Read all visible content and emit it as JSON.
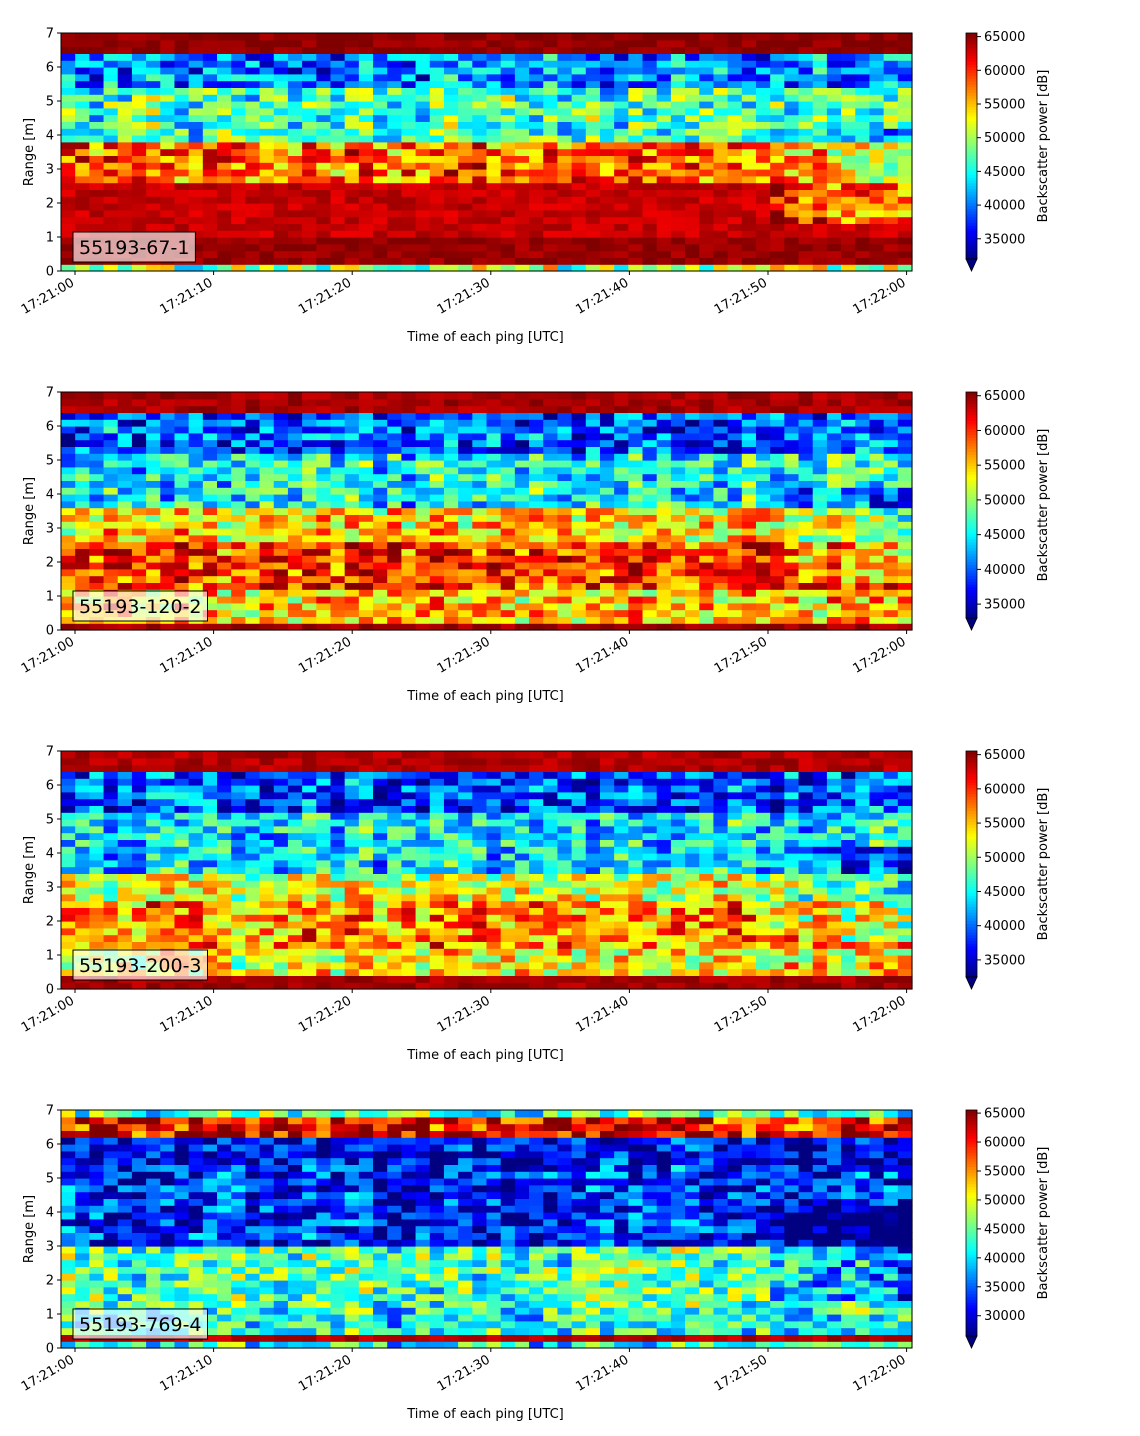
{
  "chart_data": [
    {
      "type": "heatmap",
      "label": "55193-67-1",
      "xlabel": "Time of each ping [UTC]",
      "ylabel": "Range [m]",
      "xticks": [
        "17:21:00",
        "17:21:10",
        "17:21:20",
        "17:21:30",
        "17:21:40",
        "17:21:50",
        "17:22:00"
      ],
      "x_range_seconds": [
        0,
        60
      ],
      "ylim": [
        0,
        7
      ],
      "yticks": [
        0,
        1,
        2,
        3,
        4,
        5,
        6,
        7
      ],
      "colorbar": {
        "label": "Backscatter power [dB]",
        "range": [
          32000,
          65535
        ],
        "ticks": [
          35000,
          40000,
          45000,
          50000,
          55000,
          60000,
          65000
        ],
        "cmap": "jet",
        "extend": "min"
      },
      "range_profile_m": [
        {
          "range_start": 0.0,
          "range_end": 0.25,
          "level": 0.55
        },
        {
          "range_start": 0.25,
          "range_end": 1.1,
          "level": 0.98
        },
        {
          "range_start": 1.1,
          "range_end": 2.6,
          "level": 0.93
        },
        {
          "range_start": 2.6,
          "range_end": 3.9,
          "level": 0.78
        },
        {
          "range_start": 3.9,
          "range_end": 5.5,
          "level": 0.45
        },
        {
          "range_start": 5.5,
          "range_end": 6.45,
          "level": 0.26
        },
        {
          "range_start": 6.45,
          "range_end": 7.0,
          "level": 0.99
        }
      ]
    },
    {
      "type": "heatmap",
      "label": "55193-120-2",
      "xlabel": "Time of each ping [UTC]",
      "ylabel": "Range [m]",
      "xticks": [
        "17:21:00",
        "17:21:10",
        "17:21:20",
        "17:21:30",
        "17:21:40",
        "17:21:50",
        "17:22:00"
      ],
      "x_range_seconds": [
        0,
        60
      ],
      "ylim": [
        0,
        7
      ],
      "yticks": [
        0,
        1,
        2,
        3,
        4,
        5,
        6,
        7
      ],
      "colorbar": {
        "label": "Backscatter power [dB]",
        "range": [
          33000,
          65535
        ],
        "ticks": [
          35000,
          40000,
          45000,
          50000,
          55000,
          60000,
          65000
        ],
        "cmap": "jet",
        "extend": "min"
      },
      "range_profile_m": [
        {
          "range_start": 0.0,
          "range_end": 0.3,
          "level": 0.97
        },
        {
          "range_start": 0.3,
          "range_end": 1.2,
          "level": 0.68
        },
        {
          "range_start": 1.2,
          "range_end": 2.6,
          "level": 0.83
        },
        {
          "range_start": 2.6,
          "range_end": 3.6,
          "level": 0.66
        },
        {
          "range_start": 3.6,
          "range_end": 5.2,
          "level": 0.38
        },
        {
          "range_start": 5.2,
          "range_end": 6.4,
          "level": 0.22
        },
        {
          "range_start": 6.4,
          "range_end": 7.0,
          "level": 0.96
        }
      ]
    },
    {
      "type": "heatmap",
      "label": "55193-200-3",
      "xlabel": "Time of each ping [UTC]",
      "ylabel": "Range [m]",
      "xticks": [
        "17:21:00",
        "17:21:10",
        "17:21:20",
        "17:21:30",
        "17:21:40",
        "17:21:50",
        "17:22:00"
      ],
      "x_range_seconds": [
        0,
        60
      ],
      "ylim": [
        0,
        7
      ],
      "yticks": [
        0,
        1,
        2,
        3,
        4,
        5,
        6,
        7
      ],
      "colorbar": {
        "label": "Backscatter power [dB]",
        "range": [
          32500,
          65535
        ],
        "ticks": [
          35000,
          40000,
          45000,
          50000,
          55000,
          60000,
          65000
        ],
        "cmap": "jet",
        "extend": "min"
      },
      "range_profile_m": [
        {
          "range_start": 0.0,
          "range_end": 0.35,
          "level": 0.96
        },
        {
          "range_start": 0.35,
          "range_end": 1.2,
          "level": 0.62
        },
        {
          "range_start": 1.2,
          "range_end": 2.6,
          "level": 0.74
        },
        {
          "range_start": 2.6,
          "range_end": 3.5,
          "level": 0.6
        },
        {
          "range_start": 3.5,
          "range_end": 5.2,
          "level": 0.35
        },
        {
          "range_start": 5.2,
          "range_end": 6.4,
          "level": 0.2
        },
        {
          "range_start": 6.4,
          "range_end": 7.0,
          "level": 0.95
        }
      ]
    },
    {
      "type": "heatmap",
      "label": "55193-769-4",
      "xlabel": "Time of each ping [UTC]",
      "ylabel": "Range [m]",
      "xticks": [
        "17:21:00",
        "17:21:10",
        "17:21:20",
        "17:21:30",
        "17:21:40",
        "17:21:50",
        "17:22:00"
      ],
      "x_range_seconds": [
        0,
        60
      ],
      "ylim": [
        0,
        7
      ],
      "yticks": [
        0,
        1,
        2,
        3,
        4,
        5,
        6,
        7
      ],
      "colorbar": {
        "label": "Backscatter power [dB]",
        "range": [
          26500,
          65535
        ],
        "ticks": [
          30000,
          35000,
          40000,
          45000,
          50000,
          55000,
          60000,
          65000
        ],
        "cmap": "jet",
        "extend": "min"
      },
      "range_profile_m": [
        {
          "range_start": 0.0,
          "range_end": 0.2,
          "level": 0.4
        },
        {
          "range_start": 0.2,
          "range_end": 0.35,
          "level": 0.95
        },
        {
          "range_start": 0.35,
          "range_end": 1.2,
          "level": 0.4
        },
        {
          "range_start": 1.2,
          "range_end": 3.0,
          "level": 0.45
        },
        {
          "range_start": 3.0,
          "range_end": 5.5,
          "level": 0.15
        },
        {
          "range_start": 5.5,
          "range_end": 6.2,
          "level": 0.1
        },
        {
          "range_start": 6.2,
          "range_end": 6.7,
          "level": 0.88
        },
        {
          "range_start": 6.7,
          "range_end": 7.0,
          "level": 0.45
        }
      ]
    }
  ]
}
